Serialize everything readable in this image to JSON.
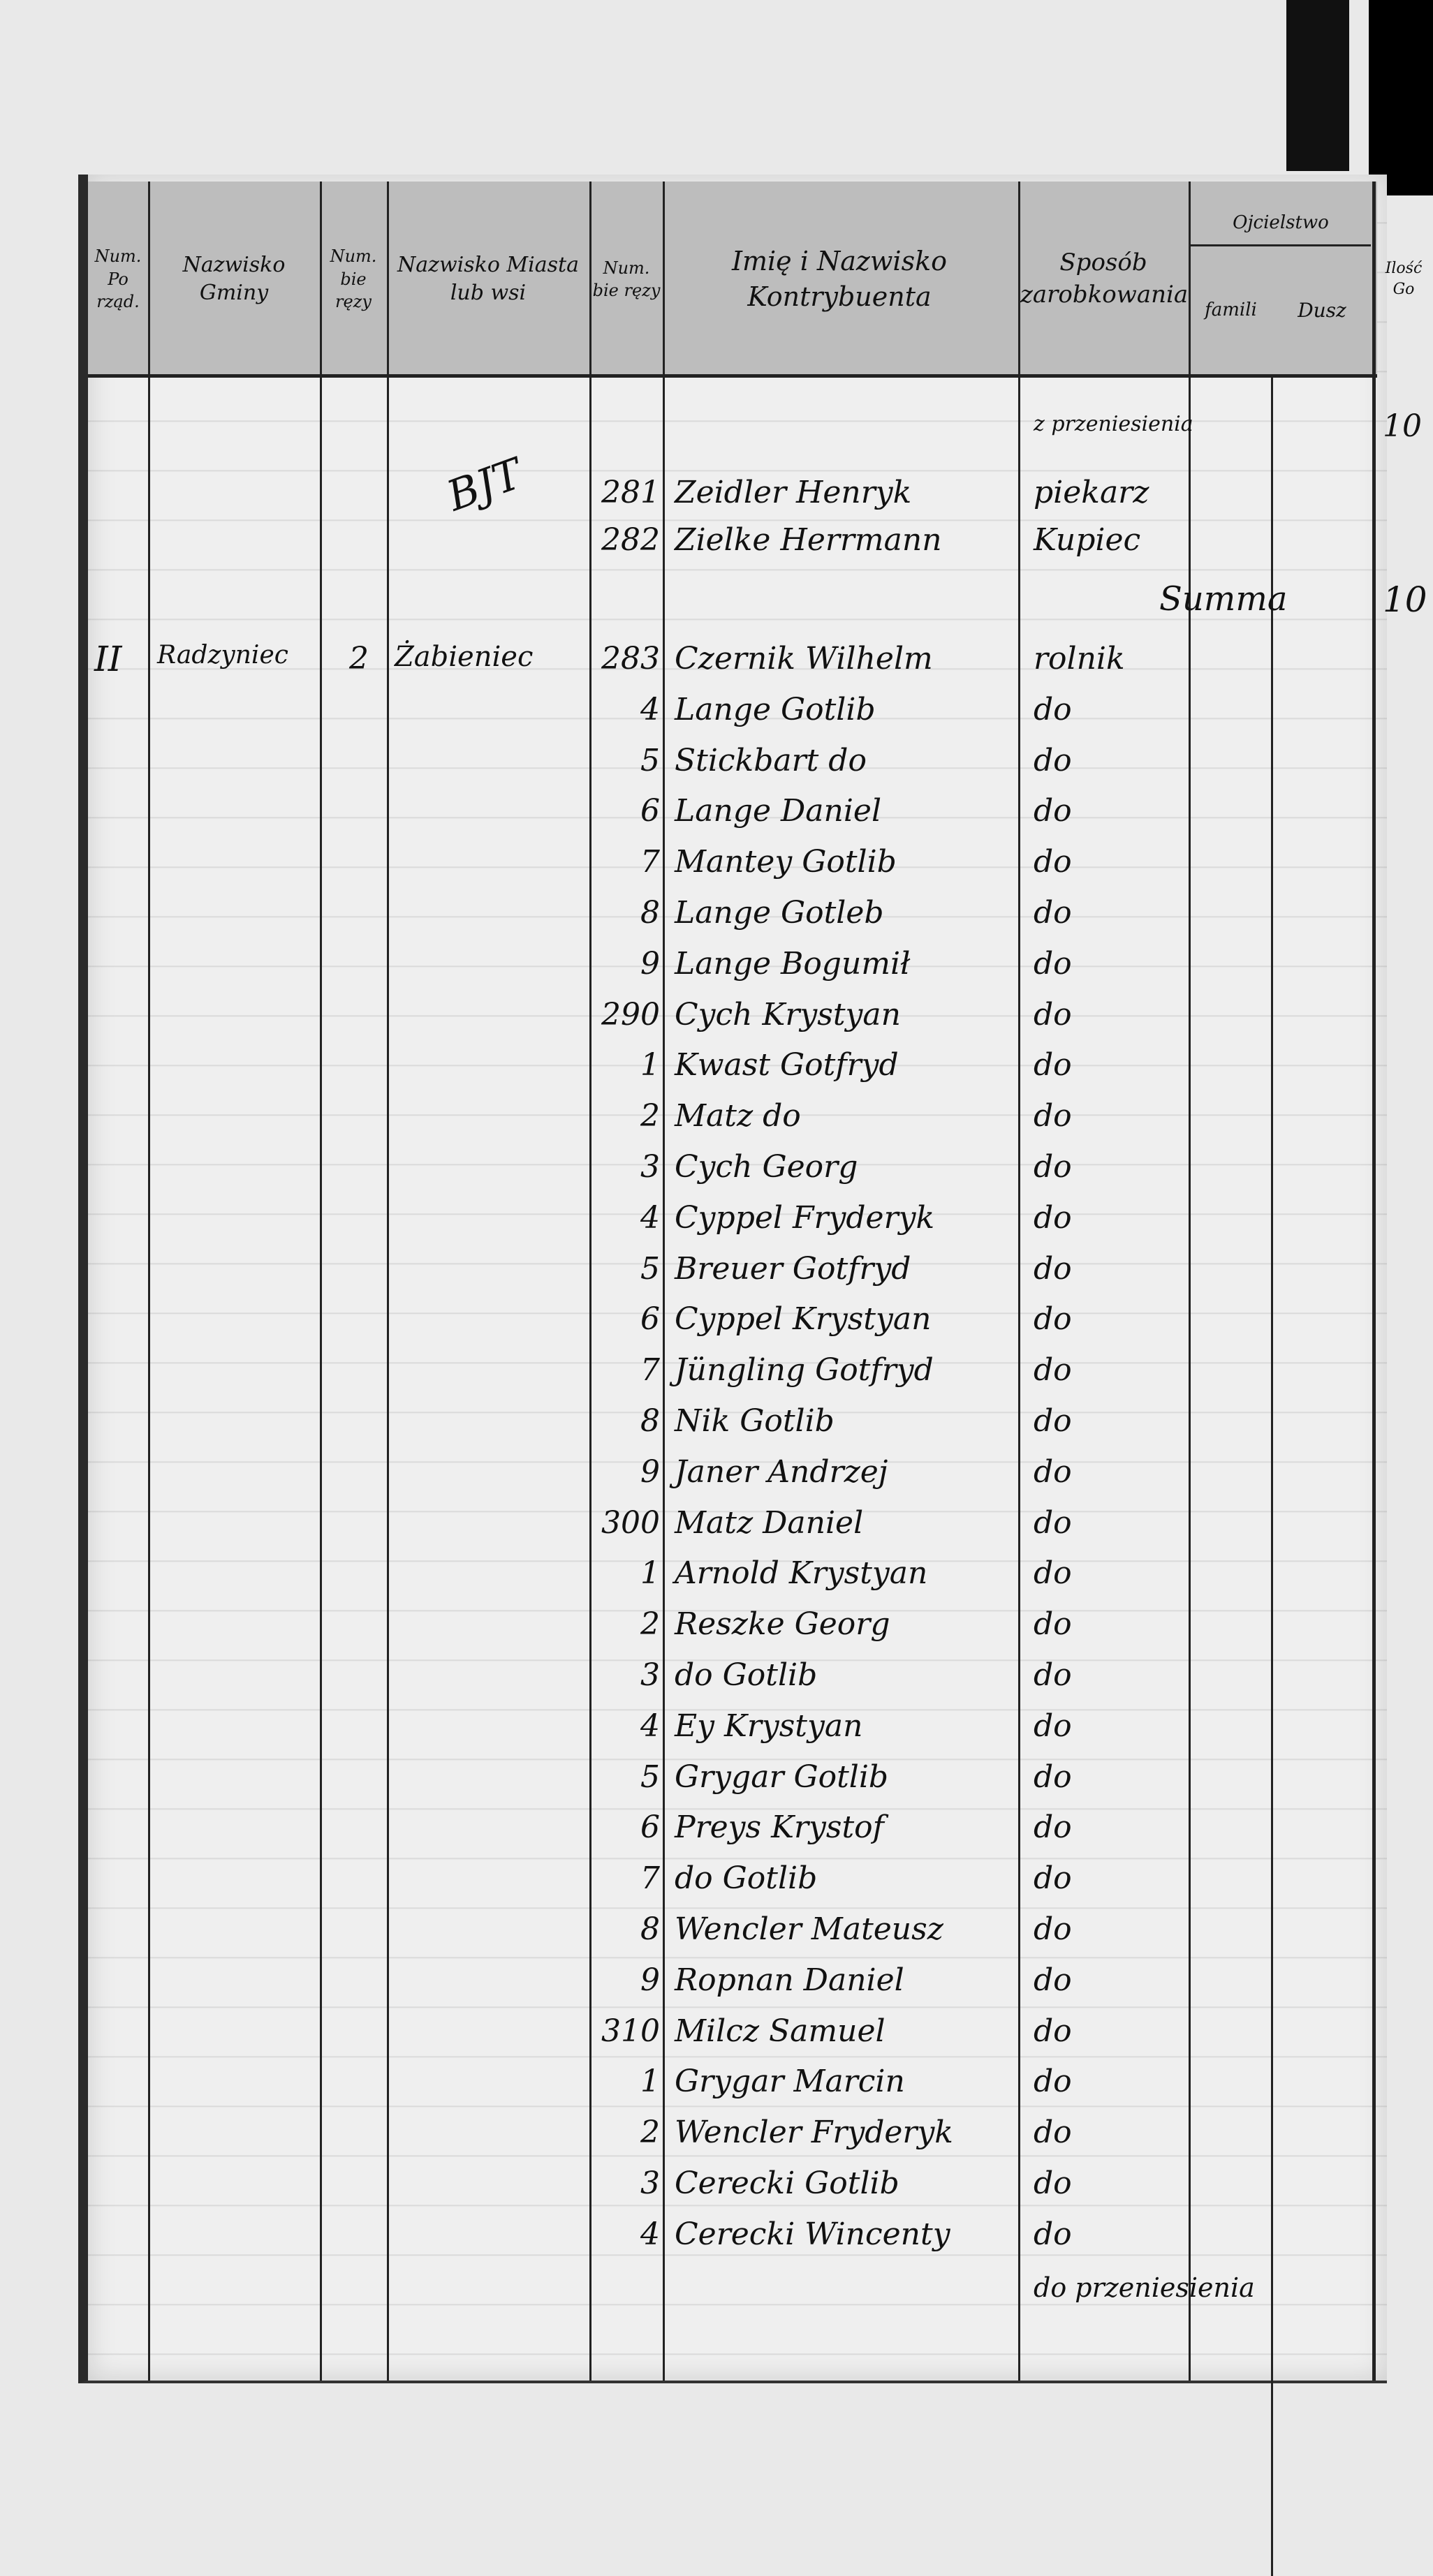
{
  "header": {
    "col_order": "Num. Po rząd.",
    "col_commune": "Nazwisko Gminy",
    "col_num1": "Num. bie ręzy",
    "col_town": "Nazwisko Miasta lub wsi",
    "col_num2": "Num. bie ręzy",
    "col_name": "Imię i Nazwisko Kontrybuenta",
    "col_occupation": "Sposób zarobkowania",
    "col_group": "Ojcielstwo",
    "col_families": "famili",
    "col_souls": "Dusz",
    "col_last": "Ilość Go"
  },
  "top": {
    "carry_note": "z przeniesienia",
    "carry_value": "10",
    "margin_mark": "BJT",
    "summa_label": "Summa",
    "summa_value": "10"
  },
  "pre_entries": [
    {
      "num": "281",
      "name": "Zeidler Henryk",
      "occupation": "piekarz"
    },
    {
      "num": "282",
      "name": "Zielke Herrmann",
      "occupation": "Kupiec"
    }
  ],
  "section": {
    "order": "II",
    "commune": "Radzyniec",
    "num": "2",
    "town": "Żabieniec"
  },
  "entries": [
    {
      "num": "283",
      "name": "Czernik Wilhelm",
      "occupation": "rolnik"
    },
    {
      "num": "4",
      "name": "Lange Gotlib",
      "occupation": "do"
    },
    {
      "num": "5",
      "name": "Stickbart do",
      "occupation": "do"
    },
    {
      "num": "6",
      "name": "Lange Daniel",
      "occupation": "do"
    },
    {
      "num": "7",
      "name": "Mantey Gotlib",
      "occupation": "do"
    },
    {
      "num": "8",
      "name": "Lange Gotleb",
      "occupation": "do"
    },
    {
      "num": "9",
      "name": "Lange Bogumił",
      "occupation": "do"
    },
    {
      "num": "290",
      "name": "Cych Krystyan",
      "occupation": "do"
    },
    {
      "num": "1",
      "name": "Kwast Gotfryd",
      "occupation": "do"
    },
    {
      "num": "2",
      "name": "Matz do",
      "occupation": "do"
    },
    {
      "num": "3",
      "name": "Cych Georg",
      "occupation": "do"
    },
    {
      "num": "4",
      "name": "Cyppel Fryderyk",
      "occupation": "do"
    },
    {
      "num": "5",
      "name": "Breuer Gotfryd",
      "occupation": "do"
    },
    {
      "num": "6",
      "name": "Cyppel Krystyan",
      "occupation": "do"
    },
    {
      "num": "7",
      "name": "Jüngling Gotfryd",
      "occupation": "do"
    },
    {
      "num": "8",
      "name": "Nik Gotlib",
      "occupation": "do"
    },
    {
      "num": "9",
      "name": "Janer Andrzej",
      "occupation": "do"
    },
    {
      "num": "300",
      "name": "Matz Daniel",
      "occupation": "do"
    },
    {
      "num": "1",
      "name": "Arnold Krystyan",
      "occupation": "do"
    },
    {
      "num": "2",
      "name": "Reszke Georg",
      "occupation": "do"
    },
    {
      "num": "3",
      "name": "do Gotlib",
      "occupation": "do"
    },
    {
      "num": "4",
      "name": "Ey Krystyan",
      "occupation": "do"
    },
    {
      "num": "5",
      "name": "Grygar Gotlib",
      "occupation": "do"
    },
    {
      "num": "6",
      "name": "Preys Krystof",
      "occupation": "do"
    },
    {
      "num": "7",
      "name": "do Gotlib",
      "occupation": "do"
    },
    {
      "num": "8",
      "name": "Wencler Mateusz",
      "occupation": "do"
    },
    {
      "num": "9",
      "name": "Ropnan Daniel",
      "occupation": "do"
    },
    {
      "num": "310",
      "name": "Milcz Samuel",
      "occupation": "do"
    },
    {
      "num": "1",
      "name": "Grygar Marcin",
      "occupation": "do"
    },
    {
      "num": "2",
      "name": "Wencler Fryderyk",
      "occupation": "do"
    },
    {
      "num": "3",
      "name": "Cerecki Gotlib",
      "occupation": "do"
    },
    {
      "num": "4",
      "name": "Cerecki Wincenty",
      "occupation": "do"
    }
  ],
  "footer": {
    "carry_note": "do przeniesienia"
  }
}
